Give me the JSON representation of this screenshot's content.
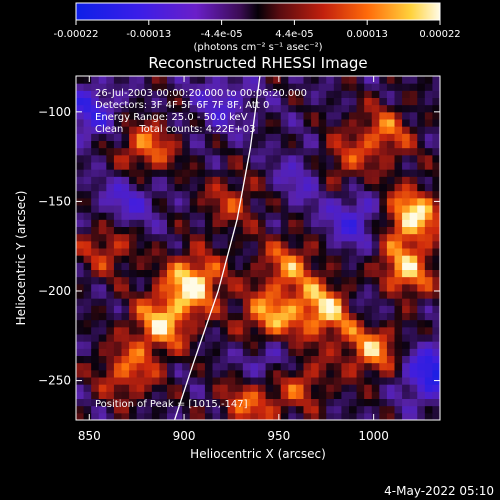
{
  "chart_data": {
    "type": "heatmap",
    "title": "Reconstructed RHESSI Image",
    "xlabel": "Heliocentric X (arcsec)",
    "ylabel": "Heliocentric Y (arcsec)",
    "xlim": [
      843,
      1035
    ],
    "ylim": [
      -272,
      -80
    ],
    "x_ticks": [
      850,
      900,
      950,
      1000
    ],
    "y_ticks": [
      -100,
      -150,
      -200,
      -250
    ],
    "colorbar": {
      "ticks": [
        "-0.00022",
        "-0.00013",
        "-4.4e-05",
        "4.4e-05",
        "0.00013",
        "0.00022"
      ],
      "unit_label": "(photons cm⁻² s⁻¹ asec⁻²)",
      "range": [
        -0.00022,
        0.00022
      ]
    },
    "annotations": [
      "26-Jul-2003 00:00:20.000 to 00:06:20.000",
      "Detectors: 3F 4F 5F 6F 7F 8F, Att 0",
      "Energy Range: 25.0 - 50.0 keV",
      "Clean     Total counts: 4.22E+03"
    ],
    "peak_label": "Position of Peak = [1015,-147]",
    "hot_regions": [
      {
        "x": 905,
        "y": -195,
        "intensity": 0.95
      },
      {
        "x": 888,
        "y": -218,
        "intensity": 0.8
      },
      {
        "x": 880,
        "y": -120,
        "intensity": 0.65
      },
      {
        "x": 870,
        "y": -245,
        "intensity": 0.6
      },
      {
        "x": 945,
        "y": -215,
        "intensity": 0.75
      },
      {
        "x": 975,
        "y": -210,
        "intensity": 0.85
      },
      {
        "x": 955,
        "y": -185,
        "intensity": 0.6
      },
      {
        "x": 1000,
        "y": -232,
        "intensity": 0.75
      },
      {
        "x": 1020,
        "y": -158,
        "intensity": 0.95
      },
      {
        "x": 1015,
        "y": -190,
        "intensity": 0.85
      },
      {
        "x": 1005,
        "y": -112,
        "intensity": 0.6
      },
      {
        "x": 980,
        "y": -130,
        "intensity": 0.55
      },
      {
        "x": 935,
        "y": -262,
        "intensity": 0.6
      },
      {
        "x": 960,
        "y": -250,
        "intensity": 0.55
      },
      {
        "x": 925,
        "y": -150,
        "intensity": 0.45
      },
      {
        "x": 860,
        "y": -175,
        "intensity": 0.5
      }
    ],
    "cold_regions": [
      {
        "x": 1030,
        "y": -245,
        "intensity": 0.85
      },
      {
        "x": 850,
        "y": -100,
        "intensity": 0.6
      },
      {
        "x": 990,
        "y": -160,
        "intensity": 0.6
      },
      {
        "x": 965,
        "y": -135,
        "intensity": 0.5
      },
      {
        "x": 870,
        "y": -150,
        "intensity": 0.5
      },
      {
        "x": 945,
        "y": -240,
        "intensity": 0.55
      },
      {
        "x": 920,
        "y": -95,
        "intensity": 0.45
      },
      {
        "x": 1000,
        "y": -205,
        "intensity": 0.4
      }
    ],
    "limb_curve": [
      [
        940,
        -80
      ],
      [
        935,
        -120
      ],
      [
        928,
        -160
      ],
      [
        918,
        -200
      ],
      [
        905,
        -240
      ],
      [
        895,
        -272
      ]
    ]
  },
  "footer": {
    "date_stamp": "4-May-2022 05:10"
  },
  "colors": {
    "background": "#000000",
    "text": "#ffffff"
  }
}
